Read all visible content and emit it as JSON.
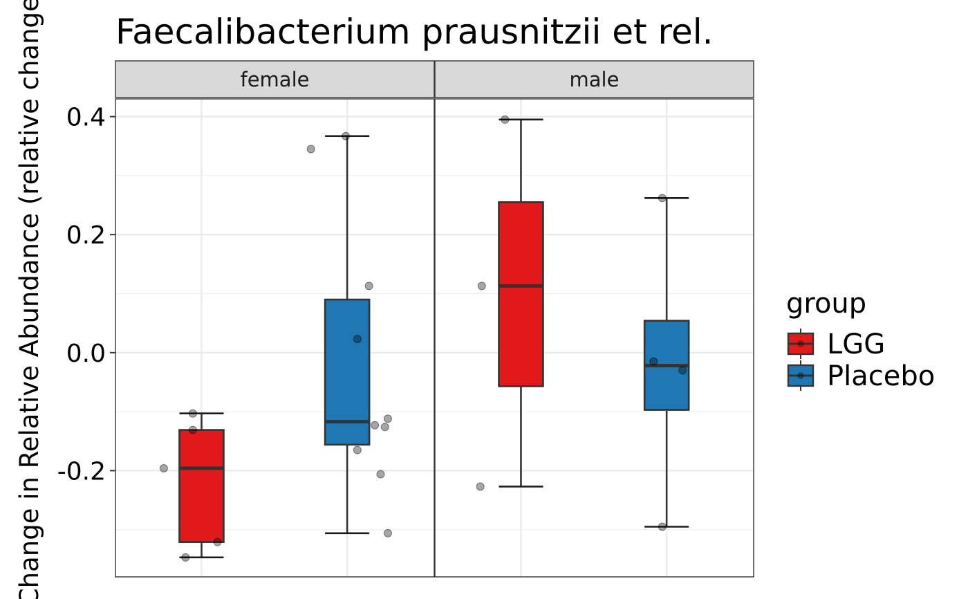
{
  "chart_data": {
    "type": "boxplot",
    "title": "Faecalibacterium prausnitzii et rel.",
    "ylabel": "Change in Relative Abundance (relative change)",
    "xlabel": "",
    "ylim": [
      -0.38,
      0.43
    ],
    "yticks": [
      0.4,
      0.2,
      0.0,
      -0.2
    ],
    "ytick_labels": [
      "0.4",
      "0.2",
      "0.0",
      "-0.2"
    ],
    "grid": true,
    "legend": {
      "title": "group",
      "position": "right",
      "entries": [
        {
          "label": "LGG",
          "color": "#E31A1C"
        },
        {
          "label": "Placebo",
          "color": "#1F78B4"
        }
      ]
    },
    "facets": [
      {
        "label": "female",
        "boxes": [
          {
            "group": "LGG",
            "color": "#E31A1C",
            "whisker_low": -0.347,
            "q1": -0.321,
            "median": -0.196,
            "q3": -0.131,
            "whisker_high": -0.103,
            "points": [
              {
                "jitter": -0.26,
                "y": -0.196
              },
              {
                "jitter": -0.06,
                "y": -0.103
              },
              {
                "jitter": -0.06,
                "y": -0.131
              },
              {
                "jitter": 0.11,
                "y": -0.321
              },
              {
                "jitter": -0.11,
                "y": -0.347
              }
            ]
          },
          {
            "group": "Placebo",
            "color": "#1F78B4",
            "whisker_low": -0.306,
            "q1": -0.156,
            "median": -0.117,
            "q3": 0.09,
            "whisker_high": 0.367,
            "points": [
              {
                "jitter": -0.25,
                "y": 0.345
              },
              {
                "jitter": -0.01,
                "y": 0.367
              },
              {
                "jitter": 0.15,
                "y": 0.113
              },
              {
                "jitter": 0.07,
                "y": 0.023
              },
              {
                "jitter": 0.19,
                "y": -0.123
              },
              {
                "jitter": 0.26,
                "y": -0.126
              },
              {
                "jitter": 0.28,
                "y": -0.112
              },
              {
                "jitter": 0.07,
                "y": -0.165
              },
              {
                "jitter": 0.23,
                "y": -0.206
              },
              {
                "jitter": 0.28,
                "y": -0.306
              }
            ]
          }
        ]
      },
      {
        "label": "male",
        "boxes": [
          {
            "group": "LGG",
            "color": "#E31A1C",
            "whisker_low": -0.227,
            "q1": -0.057,
            "median": 0.113,
            "q3": 0.255,
            "whisker_high": 0.395,
            "points": [
              {
                "jitter": -0.27,
                "y": 0.113
              },
              {
                "jitter": -0.11,
                "y": 0.395
              },
              {
                "jitter": -0.28,
                "y": -0.227
              }
            ]
          },
          {
            "group": "Placebo",
            "color": "#1F78B4",
            "whisker_low": -0.295,
            "q1": -0.097,
            "median": -0.022,
            "q3": 0.054,
            "whisker_high": 0.262,
            "points": [
              {
                "jitter": -0.09,
                "y": -0.015
              },
              {
                "jitter": 0.11,
                "y": -0.03
              },
              {
                "jitter": -0.03,
                "y": 0.262
              },
              {
                "jitter": -0.03,
                "y": -0.295
              }
            ]
          }
        ]
      }
    ]
  }
}
